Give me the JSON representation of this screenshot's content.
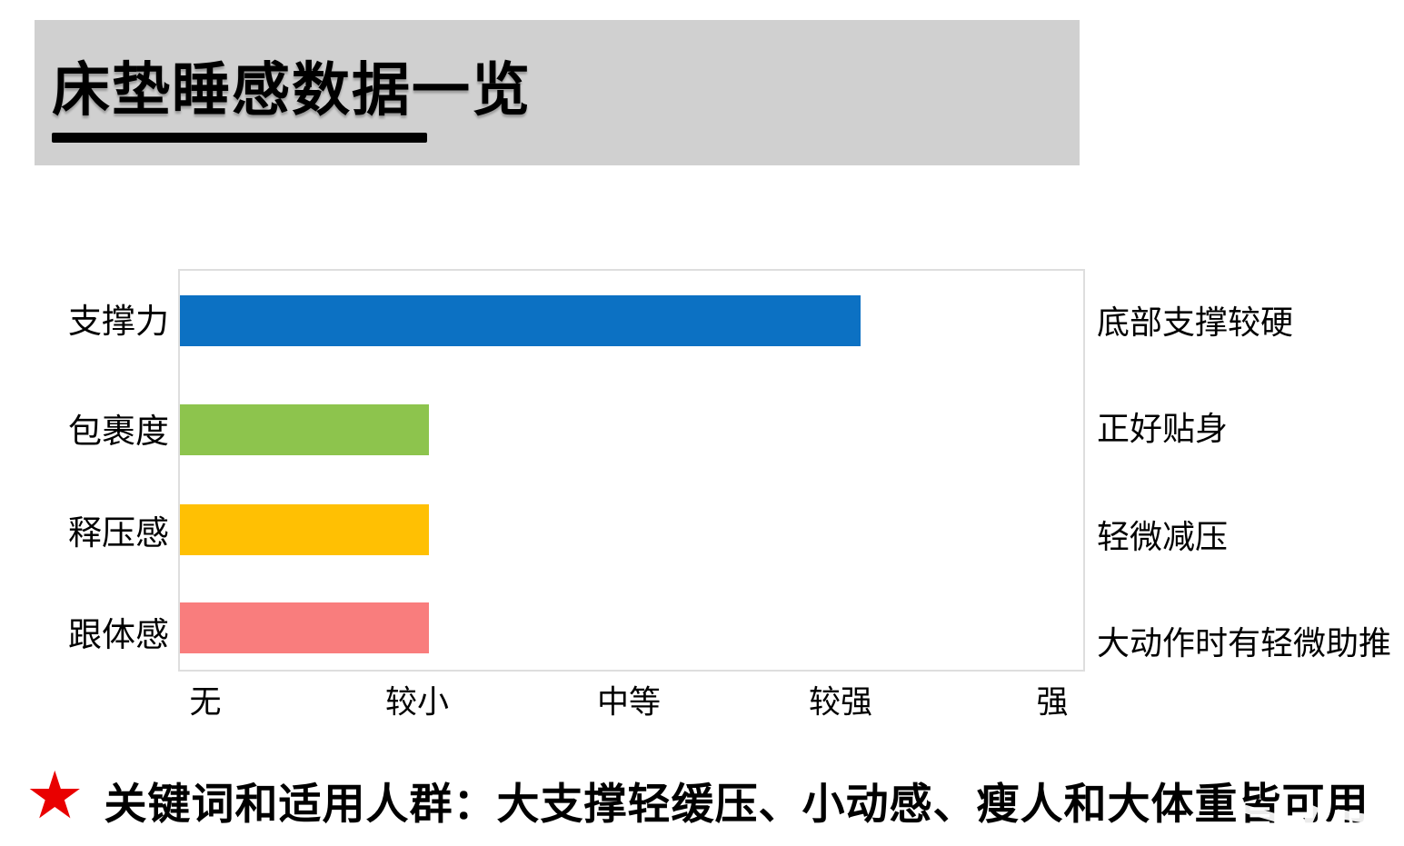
{
  "header": {
    "title": "床垫睡感数据一览"
  },
  "chart_data": {
    "type": "bar",
    "orientation": "horizontal",
    "title": "床垫睡感数据一览",
    "categories": [
      "支撑力",
      "包裹度",
      "释压感",
      "跟体感"
    ],
    "values": [
      3,
      1.1,
      1.1,
      1.1
    ],
    "value_scale": {
      "range": [
        0,
        4
      ],
      "ticks": [
        0,
        1,
        2,
        3,
        4
      ],
      "tick_labels": [
        "无",
        "较小",
        "中等",
        "较强",
        "强"
      ]
    },
    "bar_colors": [
      "#0C71C3",
      "#8DC44D",
      "#FFC003",
      "#F97D7D"
    ],
    "right_annotations": [
      "底部支撑较硬",
      "正好贴身",
      "轻微减压",
      "大动作时有轻微助推"
    ],
    "grid": false,
    "legend": false
  },
  "footer": {
    "star_icon": "★",
    "text": "关键词和适用人群：大支撑轻缓压、小动感、瘦人和大体重皆可用"
  },
  "colors": {
    "header_bg": "#D0D0D0",
    "title_underline": "#000000",
    "plot_border": "#DEDEDE",
    "star_red": "#E90000",
    "text": "#000000"
  }
}
